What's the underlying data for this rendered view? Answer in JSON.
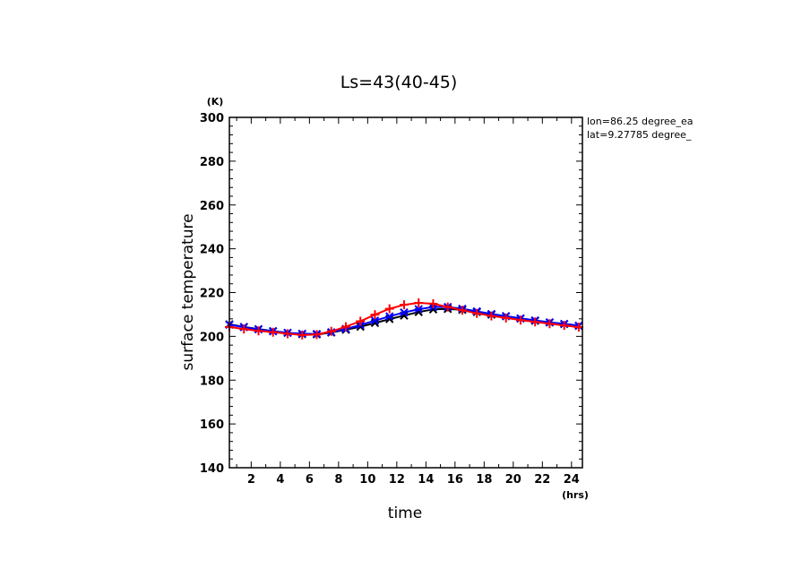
{
  "chart_data": {
    "type": "line",
    "title": "Ls=43(40-45)",
    "xlabel": "time",
    "ylabel": "surface temperature",
    "x_unit": "(hrs)",
    "y_unit": "(K)",
    "xlim": [
      0.5,
      24.75
    ],
    "ylim": [
      140,
      300
    ],
    "x_ticks": [
      2,
      4,
      6,
      8,
      10,
      12,
      14,
      16,
      18,
      20,
      22,
      24
    ],
    "y_ticks": [
      140,
      160,
      180,
      200,
      220,
      240,
      260,
      280,
      300
    ],
    "grid": false,
    "legend": "none",
    "annotations": [
      "lon=86.25 degree_ea",
      "lat=9.27785 degree_"
    ],
    "x": [
      0.5,
      1.5,
      2.5,
      3.5,
      4.5,
      5.5,
      6.5,
      7.5,
      8.5,
      9.5,
      10.5,
      11.5,
      12.5,
      13.5,
      14.5,
      15.5,
      16.5,
      17.5,
      18.5,
      19.5,
      20.5,
      21.5,
      22.5,
      23.5,
      24.5
    ],
    "series": [
      {
        "color": "#000000",
        "marker": "x",
        "values": [
          205.5,
          204.3,
          203.3,
          202.4,
          201.6,
          201.0,
          200.9,
          201.7,
          203.0,
          204.4,
          206.1,
          207.9,
          209.5,
          211.1,
          212.3,
          212.5,
          212.1,
          211.1,
          209.9,
          209.2,
          208.1,
          207.1,
          206.3,
          205.6,
          204.8
        ]
      },
      {
        "color": "#0000ff",
        "marker": "x",
        "values": [
          205.3,
          204.2,
          203.2,
          202.3,
          201.6,
          201.2,
          201.1,
          201.9,
          203.4,
          205.2,
          207.2,
          209.1,
          210.9,
          212.4,
          213.4,
          213.4,
          212.6,
          211.4,
          210.2,
          209.2,
          208.2,
          207.3,
          206.4,
          205.7,
          204.9
        ]
      },
      {
        "color": "#ff0000",
        "marker": "+",
        "values": [
          204.3,
          203.3,
          202.5,
          201.9,
          201.2,
          200.6,
          200.8,
          202.3,
          204.4,
          206.9,
          209.9,
          212.6,
          214.4,
          215.3,
          214.9,
          213.4,
          211.9,
          210.5,
          209.3,
          208.4,
          207.4,
          206.6,
          205.8,
          205.0,
          204.2
        ]
      }
    ]
  }
}
